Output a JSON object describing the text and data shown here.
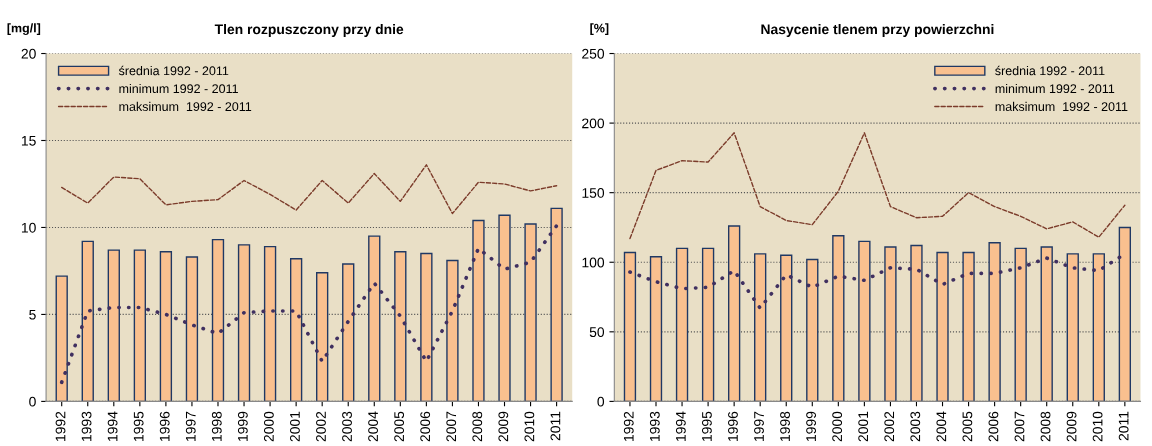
{
  "chart_data": [
    {
      "type": "bar",
      "title": "Tlen rozpuszczony przy dnie",
      "ylabel": "[mg/l]",
      "categories": [
        "1992",
        "1993",
        "1994",
        "1995",
        "1996",
        "1997",
        "1998",
        "1999",
        "2000",
        "2001",
        "2002",
        "2003",
        "2004",
        "2005",
        "2006",
        "2007",
        "2008",
        "2009",
        "2010",
        "2011"
      ],
      "series": [
        {
          "name": "średnia 1992 - 2011",
          "color": "#f9c08f",
          "values": [
            7.2,
            9.2,
            8.7,
            8.7,
            8.6,
            8.3,
            9.3,
            9.0,
            8.9,
            8.2,
            7.4,
            7.9,
            9.5,
            8.6,
            8.5,
            8.1,
            10.4,
            10.7,
            10.2,
            11.1
          ]
        },
        {
          "name": "minimum 1992 - 2011",
          "type": "line",
          "line_style": "dotted",
          "color": "#403060",
          "values": [
            1.1,
            5.2,
            5.4,
            5.4,
            5.0,
            4.4,
            3.9,
            5.1,
            5.2,
            5.2,
            2.3,
            4.6,
            6.8,
            4.9,
            2.3,
            5.2,
            8.8,
            7.6,
            8.0,
            10.1
          ]
        },
        {
          "name": "maksimum  1992 - 2011",
          "type": "line",
          "line_style": "dashed",
          "color": "#7b3b2a",
          "values": [
            12.3,
            11.4,
            12.9,
            12.8,
            11.3,
            11.5,
            11.6,
            12.7,
            11.9,
            11.0,
            12.7,
            11.4,
            13.1,
            11.5,
            13.6,
            10.8,
            12.6,
            12.5,
            12.1,
            12.4
          ]
        }
      ],
      "ylim": [
        0,
        20
      ],
      "yticks": [
        0,
        5,
        10,
        15,
        20
      ],
      "grid": "y",
      "legend": "top left"
    },
    {
      "type": "bar",
      "title": "Nasycenie tlenem przy powierzchni",
      "ylabel": "[%]",
      "categories": [
        "1992",
        "1993",
        "1994",
        "1995",
        "1996",
        "1997",
        "1998",
        "1999",
        "2000",
        "2001",
        "2002",
        "2003",
        "2004",
        "2005",
        "2006",
        "2007",
        "2008",
        "2009",
        "2010",
        "2011"
      ],
      "series": [
        {
          "name": "średnia 1992 - 2011",
          "color": "#f9c08f",
          "values": [
            107,
            104,
            110,
            110,
            126,
            106,
            105,
            102,
            119,
            115,
            111,
            112,
            107,
            107,
            114,
            110,
            111,
            106,
            106,
            125
          ]
        },
        {
          "name": "minimum 1992 - 2011",
          "type": "line",
          "line_style": "dotted",
          "color": "#403060",
          "values": [
            93,
            86,
            81,
            82,
            94,
            67,
            91,
            82,
            90,
            87,
            96,
            95,
            84,
            92,
            92,
            96,
            103,
            96,
            94,
            106
          ]
        },
        {
          "name": "maksimum  1992 - 2011",
          "type": "line",
          "line_style": "dashed",
          "color": "#7b3b2a",
          "values": [
            117,
            166,
            173,
            172,
            193,
            140,
            130,
            127,
            151,
            193,
            140,
            132,
            133,
            150,
            140,
            133,
            124,
            129,
            118,
            141
          ]
        }
      ],
      "ylim": [
        0,
        250
      ],
      "yticks": [
        0,
        50,
        100,
        150,
        200,
        250
      ],
      "grid": "y",
      "legend": "top right"
    }
  ]
}
